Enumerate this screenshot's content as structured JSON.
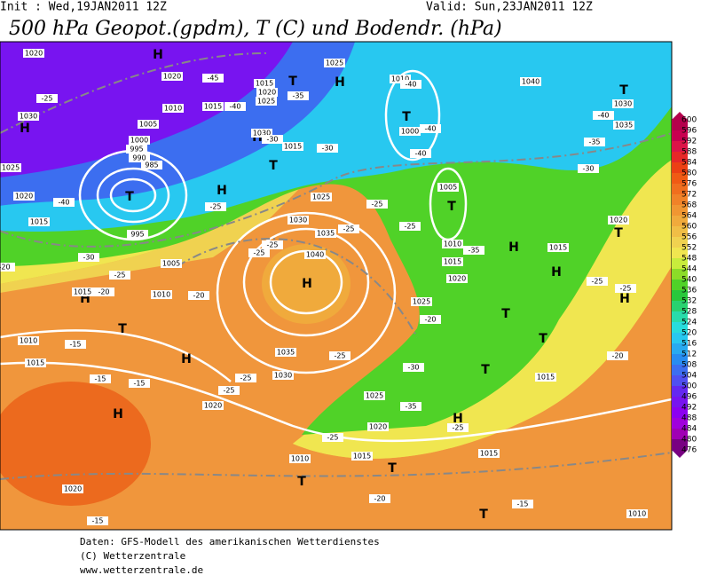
{
  "header": {
    "init": "Init : Wed,19JAN2011 12Z",
    "valid": "Valid: Sun,23JAN2011 12Z",
    "title": "500 hPa Geopot.(gpdm), T (C) und Bodendr. (hPa)"
  },
  "map": {
    "pressure_centers": [
      "H",
      "H",
      "T",
      "T",
      "T",
      "H",
      "H",
      "T",
      "H",
      "T",
      "T",
      "H",
      "H",
      "H",
      "H",
      "T",
      "H",
      "T",
      "T",
      "T",
      "H",
      "T",
      "H",
      "H",
      "T",
      "T",
      "T"
    ],
    "isobar_labels": [
      "1020",
      "1020",
      "1030",
      "1005",
      "1010",
      "1015",
      "1015",
      "1020",
      "1025",
      "1025",
      "1010",
      "1000",
      "1040",
      "1030",
      "1035",
      "1000",
      "995",
      "990",
      "985",
      "1025",
      "1020",
      "1015",
      "995",
      "1005",
      "1030",
      "1015",
      "1025",
      "1030",
      "1035",
      "1040",
      "1005",
      "1010",
      "1015",
      "1020",
      "1025",
      "1015",
      "1015",
      "1010",
      "1010",
      "1015",
      "1035",
      "1030",
      "1025",
      "1020",
      "1020",
      "1010",
      "1015",
      "1015",
      "1020",
      "1020",
      "1015",
      "1010"
    ],
    "temperature_labels": [
      "-25",
      "-45",
      "-40",
      "-35",
      "-30",
      "-30",
      "-40",
      "-40",
      "-40",
      "-35",
      "-40",
      "-30",
      "-40",
      "-30",
      "-25",
      "-25",
      "-25",
      "-25",
      "-25",
      "-25",
      "-25",
      "-35",
      "-25",
      "-25",
      "-20",
      "-20",
      "-20",
      "-15",
      "-15",
      "-15",
      "-25",
      "-25",
      "-25",
      "-30",
      "-35",
      "-20",
      "-25",
      "-25",
      "-20",
      "-20",
      "-15",
      "-15"
    ]
  },
  "colorbar": {
    "levels": [
      600,
      596,
      592,
      588,
      584,
      580,
      576,
      572,
      568,
      564,
      560,
      556,
      552,
      548,
      544,
      540,
      536,
      532,
      528,
      524,
      520,
      516,
      512,
      508,
      504,
      500,
      496,
      492,
      488,
      484,
      480,
      476
    ],
    "colors": [
      "#b4004c",
      "#c80050",
      "#dc1448",
      "#e62828",
      "#ec4014",
      "#f05a14",
      "#f06e1e",
      "#f08228",
      "#f09632",
      "#f0aa3c",
      "#f0be46",
      "#f0d250",
      "#f0e650",
      "#c8ec3c",
      "#8cdc28",
      "#50d228",
      "#28c83c",
      "#28d270",
      "#28dcaa",
      "#28dcdc",
      "#28c8f0",
      "#28aaf0",
      "#288cf0",
      "#3c6ef0",
      "#5050f0",
      "#6428f0",
      "#7814f0",
      "#8c00f0",
      "#a000dc",
      "#a000b4",
      "#780082"
    ]
  },
  "footer": {
    "lines": [
      "Daten: GFS-Modell des amerikanischen Wetterdienstes",
      "(C) Wetterzentrale",
      "www.wetterzentrale.de"
    ]
  }
}
